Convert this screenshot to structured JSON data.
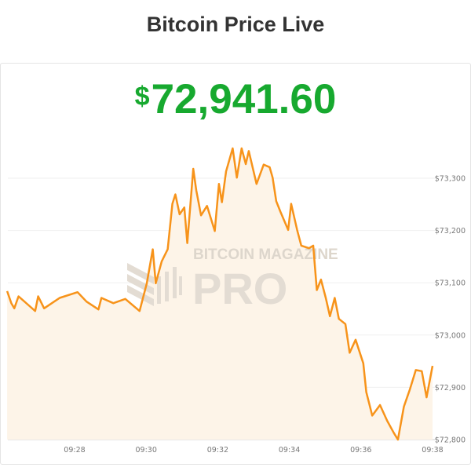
{
  "header": {
    "title": "Bitcoin Price Live"
  },
  "price": {
    "currency": "$",
    "value": "72,941.60",
    "color": "#17a92f"
  },
  "watermark": {
    "line1": "BITCOIN MAGAZINE",
    "line2": "PRO"
  },
  "chart_data": {
    "type": "area",
    "title": "",
    "xlabel": "",
    "ylabel": "",
    "ylim": [
      72800,
      73370
    ],
    "xlim": [
      "09:26:10",
      "09:38:10"
    ],
    "grid": true,
    "line_color": "#f7931a",
    "fill_color": "#fdf4e8",
    "y_ticks": [
      {
        "value": 72800,
        "label": "$72,800"
      },
      {
        "value": 72900,
        "label": "$72,900"
      },
      {
        "value": 73000,
        "label": "$73,000"
      },
      {
        "value": 73100,
        "label": "$73,100"
      },
      {
        "value": 73200,
        "label": "$73,200"
      },
      {
        "value": 73300,
        "label": "$73,300"
      }
    ],
    "x_ticks": [
      "09:28",
      "09:30",
      "09:32",
      "09:34",
      "09:36",
      "09:38"
    ],
    "points": [
      [
        "09:26:07",
        73084
      ],
      [
        "09:26:14",
        73061
      ],
      [
        "09:26:19",
        73051
      ],
      [
        "09:26:26",
        73074
      ],
      [
        "09:26:44",
        73056
      ],
      [
        "09:26:54",
        73046
      ],
      [
        "09:26:59",
        73074
      ],
      [
        "09:27:09",
        73051
      ],
      [
        "09:27:35",
        73071
      ],
      [
        "09:28:05",
        73082
      ],
      [
        "09:28:20",
        73064
      ],
      [
        "09:28:40",
        73049
      ],
      [
        "09:28:45",
        73071
      ],
      [
        "09:29:05",
        73061
      ],
      [
        "09:29:25",
        73069
      ],
      [
        "09:29:49",
        73046
      ],
      [
        "09:30:01",
        73099
      ],
      [
        "09:30:11",
        73164
      ],
      [
        "09:30:16",
        73099
      ],
      [
        "09:30:26",
        73141
      ],
      [
        "09:30:36",
        73164
      ],
      [
        "09:30:44",
        73251
      ],
      [
        "09:30:49",
        73269
      ],
      [
        "09:30:56",
        73231
      ],
      [
        "09:31:04",
        73244
      ],
      [
        "09:31:09",
        73176
      ],
      [
        "09:31:19",
        73318
      ],
      [
        "09:31:24",
        73277
      ],
      [
        "09:31:32",
        73229
      ],
      [
        "09:31:42",
        73247
      ],
      [
        "09:31:55",
        73199
      ],
      [
        "09:32:02",
        73289
      ],
      [
        "09:32:07",
        73254
      ],
      [
        "09:32:14",
        73313
      ],
      [
        "09:32:25",
        73357
      ],
      [
        "09:32:32",
        73301
      ],
      [
        "09:32:40",
        73357
      ],
      [
        "09:32:47",
        73327
      ],
      [
        "09:32:52",
        73352
      ],
      [
        "09:33:05",
        73289
      ],
      [
        "09:33:17",
        73326
      ],
      [
        "09:33:27",
        73321
      ],
      [
        "09:33:32",
        73301
      ],
      [
        "09:33:38",
        73256
      ],
      [
        "09:33:45",
        73236
      ],
      [
        "09:33:58",
        73201
      ],
      [
        "09:34:03",
        73251
      ],
      [
        "09:34:13",
        73201
      ],
      [
        "09:34:20",
        73171
      ],
      [
        "09:34:33",
        73166
      ],
      [
        "09:34:40",
        73171
      ],
      [
        "09:34:46",
        73086
      ],
      [
        "09:34:53",
        73106
      ],
      [
        "09:35:01",
        73071
      ],
      [
        "09:35:08",
        73036
      ],
      [
        "09:35:16",
        73071
      ],
      [
        "09:35:23",
        73031
      ],
      [
        "09:35:34",
        73021
      ],
      [
        "09:35:41",
        72966
      ],
      [
        "09:35:51",
        72991
      ],
      [
        "09:36:04",
        72946
      ],
      [
        "09:36:09",
        72891
      ],
      [
        "09:36:19",
        72846
      ],
      [
        "09:36:32",
        72866
      ],
      [
        "09:36:44",
        72836
      ],
      [
        "09:36:55",
        72813
      ],
      [
        "09:37:02",
        72800
      ],
      [
        "09:37:12",
        72863
      ],
      [
        "09:37:22",
        72896
      ],
      [
        "09:37:32",
        72933
      ],
      [
        "09:37:42",
        72931
      ],
      [
        "09:37:50",
        72881
      ],
      [
        "09:38:00",
        72941
      ]
    ]
  }
}
